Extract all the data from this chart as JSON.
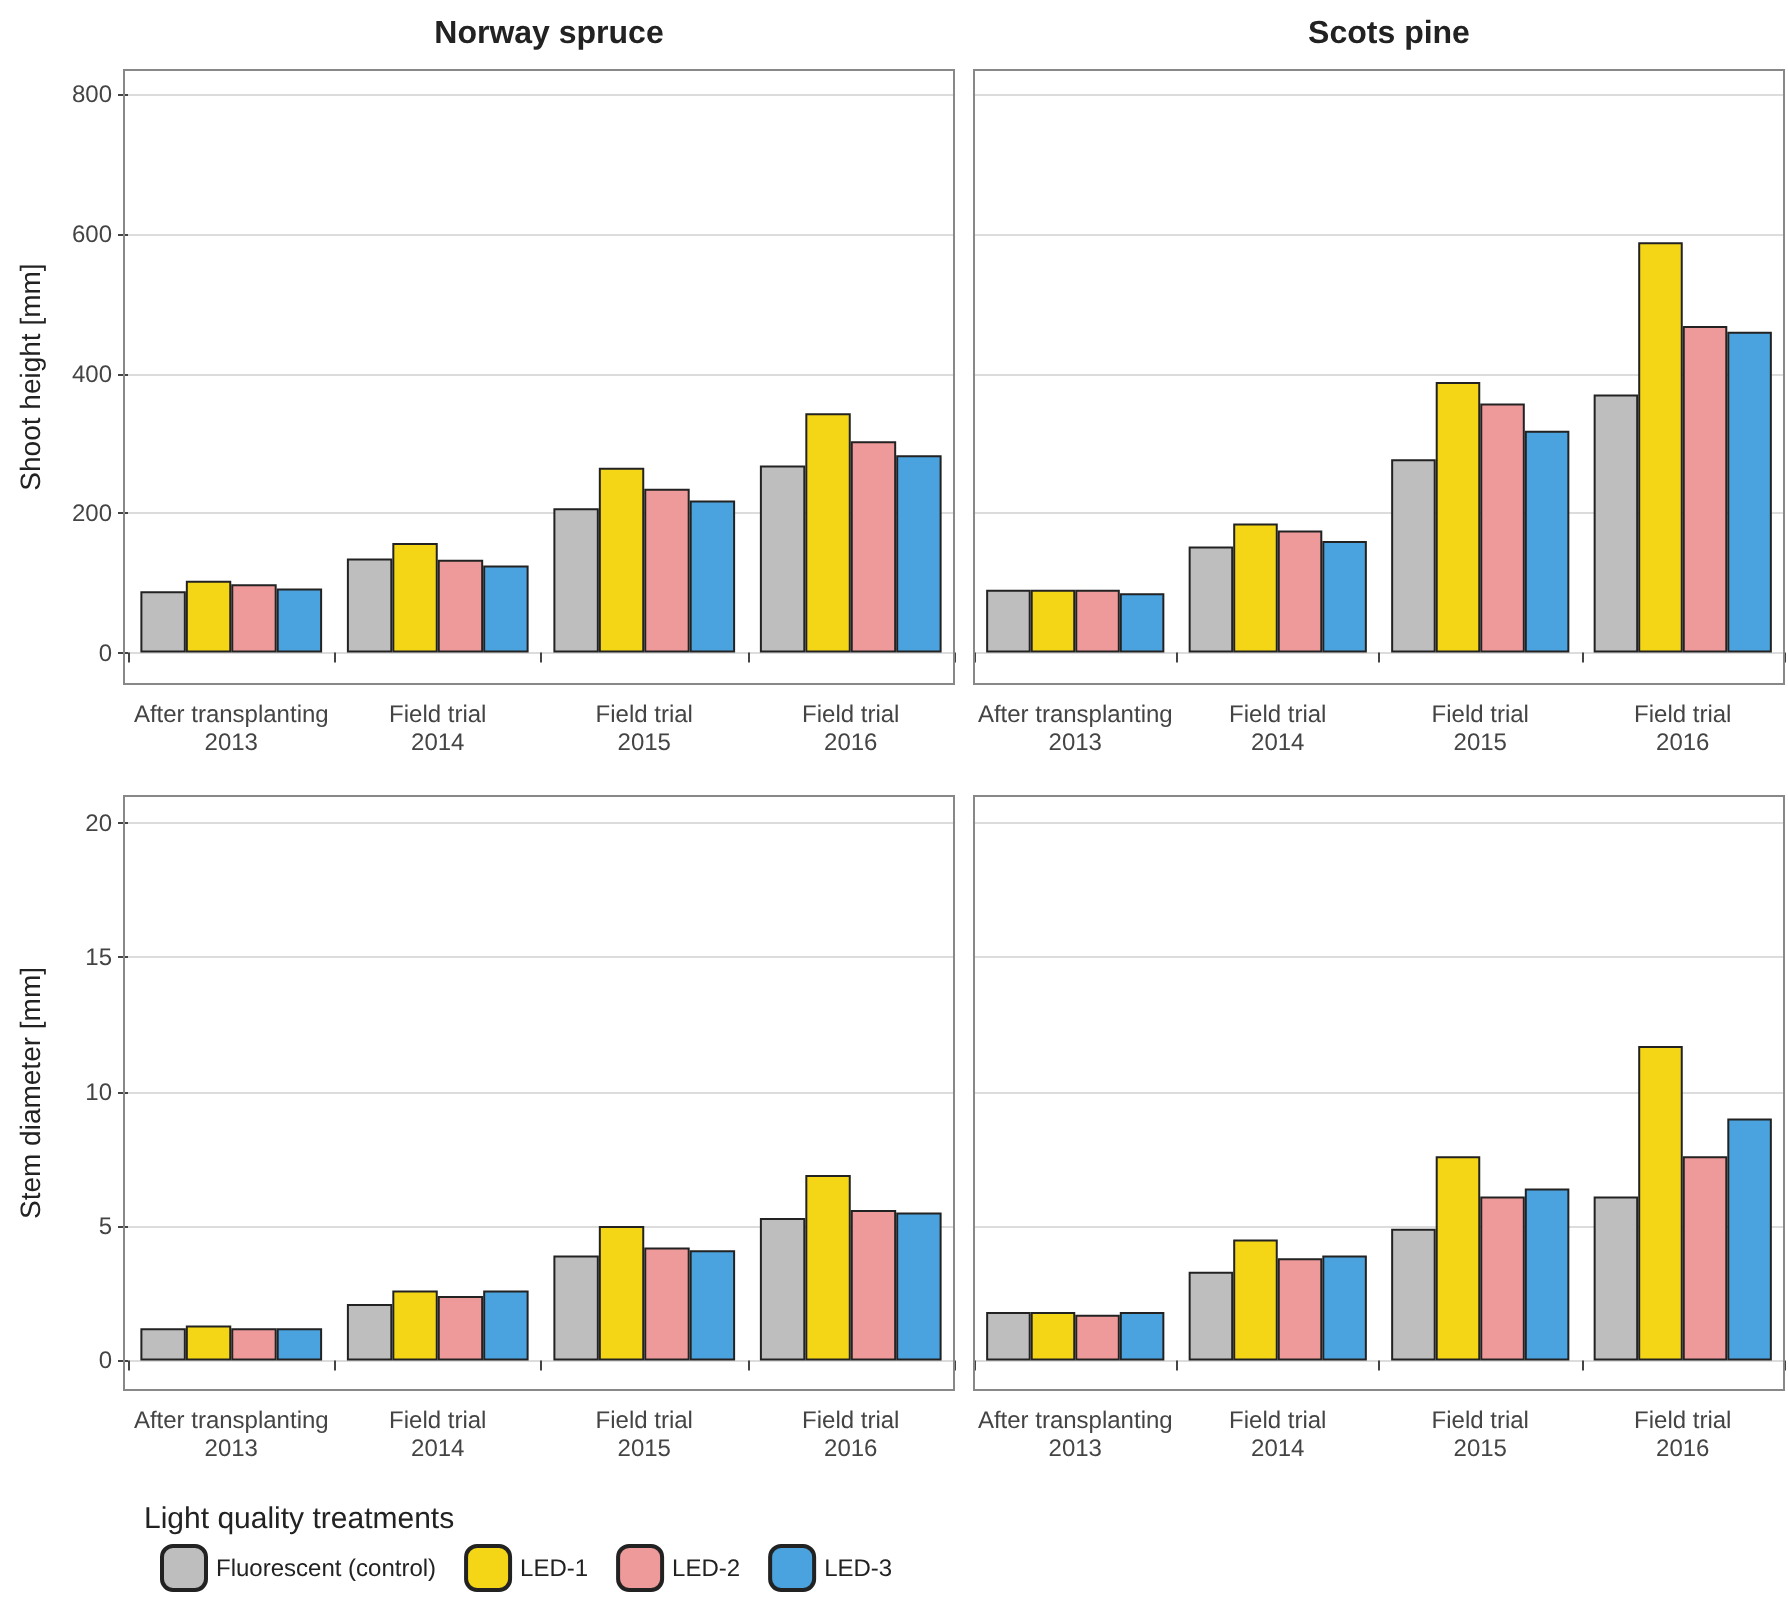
{
  "chart_data": [
    {
      "type": "bar",
      "title": "Norway spruce",
      "ylabel": "Shoot height [mm]",
      "categories": [
        "After transplanting\n2013",
        "Field trial\n2014",
        "Field trial\n2015",
        "Field trial\n2016"
      ],
      "series": [
        {
          "color": "#bebebe",
          "values": [
            88,
            135,
            207,
            268
          ]
        },
        {
          "color": "#f5d617",
          "values": [
            103,
            157,
            265,
            343
          ]
        },
        {
          "color": "#ef9a9a",
          "values": [
            98,
            133,
            235,
            303
          ]
        },
        {
          "color": "#4aa3df",
          "values": [
            92,
            125,
            218,
            283
          ]
        }
      ],
      "ylim": [
        -45,
        835
      ],
      "yticks": [
        0,
        200,
        400,
        600,
        800
      ],
      "grid": "y"
    },
    {
      "type": "bar",
      "title": "Scots pine",
      "categories": [
        "After transplanting\n2013",
        "Field trial\n2014",
        "Field trial\n2015",
        "Field trial\n2016"
      ],
      "series": [
        {
          "color": "#bebebe",
          "values": [
            90,
            152,
            277,
            370
          ]
        },
        {
          "color": "#f5d617",
          "values": [
            90,
            185,
            388,
            588
          ]
        },
        {
          "color": "#ef9a9a",
          "values": [
            90,
            175,
            357,
            468
          ]
        },
        {
          "color": "#4aa3df",
          "values": [
            85,
            160,
            318,
            460
          ]
        }
      ],
      "ylim": [
        -45,
        835
      ],
      "yticks": [
        0,
        200,
        400,
        600,
        800
      ],
      "grid": "y",
      "tick_labels": "x"
    },
    {
      "type": "bar",
      "ylabel": "Stem diameter [mm]",
      "legend_title": "Light quality treatments",
      "categories": [
        "After transplanting\n2013",
        "Field trial\n2014",
        "Field trial\n2015",
        "Field trial\n2016"
      ],
      "series": [
        {
          "name": "Fluorescent (control)",
          "color": "#bebebe",
          "values": [
            1.2,
            2.1,
            3.9,
            5.3
          ]
        },
        {
          "name": "LED-1",
          "color": "#f5d617",
          "values": [
            1.3,
            2.6,
            5.0,
            6.9
          ]
        },
        {
          "name": "LED-2",
          "color": "#ef9a9a",
          "values": [
            1.2,
            2.4,
            4.2,
            5.6
          ]
        },
        {
          "name": "LED-3",
          "color": "#4aa3df",
          "values": [
            1.2,
            2.6,
            4.1,
            5.5
          ]
        }
      ],
      "ylim": [
        -1.1,
        21
      ],
      "yticks": [
        0,
        5,
        10,
        15,
        20
      ],
      "grid": "y",
      "legend": "bottom"
    },
    {
      "type": "bar",
      "categories": [
        "After transplanting\n2013",
        "Field trial\n2014",
        "Field trial\n2015",
        "Field trial\n2016"
      ],
      "series": [
        {
          "color": "#bebebe",
          "values": [
            1.8,
            3.3,
            4.9,
            6.1
          ]
        },
        {
          "color": "#f5d617",
          "values": [
            1.8,
            4.5,
            7.6,
            11.7
          ]
        },
        {
          "color": "#ef9a9a",
          "values": [
            1.7,
            3.8,
            6.1,
            7.6
          ]
        },
        {
          "color": "#4aa3df",
          "values": [
            1.8,
            3.9,
            6.4,
            9.0
          ]
        }
      ],
      "ylim": [
        -1.1,
        21
      ],
      "yticks": [
        0,
        5,
        10,
        15,
        20
      ],
      "grid": "y",
      "tick_labels": "x"
    }
  ]
}
